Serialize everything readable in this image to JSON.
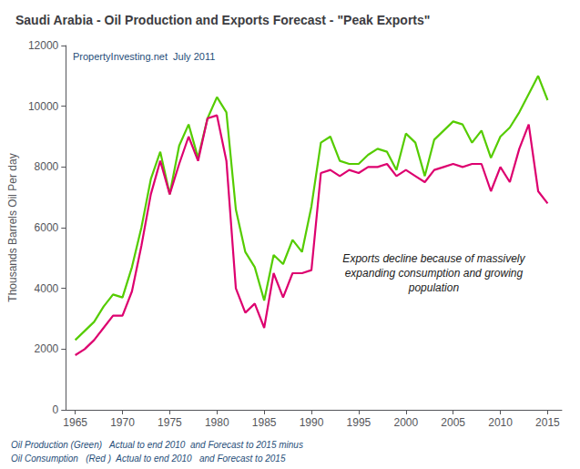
{
  "chart_data": {
    "type": "line",
    "title": "Saudi Arabia - Oil Production and Exports Forecast - \"Peak Exports\"",
    "y_label": "Thousands Barrels Oil Per day",
    "annotations": [
      "PropertyInvesting.net  July 2011",
      "Exports decline because of massively\nexpanding consumption and growing\npopulation",
      "Oil Production (Green)   Actual to end 2010  and Forecast to 2015 minus",
      "Oil Consumption   (Red )  Actual to end 2010   and Forecast to 2015"
    ],
    "x": [
      1965,
      1966,
      1967,
      1968,
      1969,
      1970,
      1971,
      1972,
      1973,
      1974,
      1975,
      1976,
      1977,
      1978,
      1979,
      1980,
      1981,
      1982,
      1983,
      1984,
      1985,
      1986,
      1987,
      1988,
      1989,
      1990,
      1991,
      1992,
      1993,
      1994,
      1995,
      1996,
      1997,
      1998,
      1999,
      2000,
      2001,
      2002,
      2003,
      2004,
      2005,
      2006,
      2007,
      2008,
      2009,
      2010,
      2011,
      2012,
      2013,
      2014,
      2015
    ],
    "series": [
      {
        "color": "#55CC00",
        "values": [
          2300,
          2600,
          2900,
          3400,
          3800,
          3700,
          4700,
          6000,
          7600,
          8500,
          7100,
          8700,
          9400,
          8300,
          9600,
          10300,
          9800,
          6600,
          5200,
          4700,
          3600,
          5100,
          4800,
          5600,
          5200,
          6700,
          8800,
          9000,
          8200,
          8100,
          8100,
          8400,
          8600,
          8500,
          7900,
          9100,
          8800,
          7700,
          8900,
          9200,
          9500,
          9400,
          8800,
          9200,
          8300,
          9000,
          9300,
          9800,
          10400,
          11000,
          10200
        ]
      },
      {
        "color": "#DD006F",
        "values": [
          1800,
          2000,
          2300,
          2700,
          3100,
          3100,
          3900,
          5400,
          7100,
          8200,
          7100,
          8100,
          9000,
          8200,
          9600,
          9700,
          8200,
          4000,
          3200,
          3500,
          2700,
          4500,
          3700,
          4500,
          4500,
          4600,
          7800,
          7900,
          7700,
          7900,
          7800,
          8000,
          8000,
          8100,
          7700,
          7900,
          7700,
          7500,
          7900,
          8000,
          8100,
          8000,
          8100,
          8100,
          7200,
          8000,
          7500,
          8600,
          9400,
          7200,
          6800
        ]
      }
    ],
    "xlim": [
      1964,
      2016.5
    ],
    "ylim": [
      0,
      12000
    ],
    "xticks": [
      1965,
      1970,
      1975,
      1980,
      1985,
      1990,
      1995,
      2000,
      2005,
      2010,
      2015
    ],
    "yticks": [
      0,
      2000,
      4000,
      6000,
      8000,
      10000,
      12000
    ],
    "grid": false
  }
}
